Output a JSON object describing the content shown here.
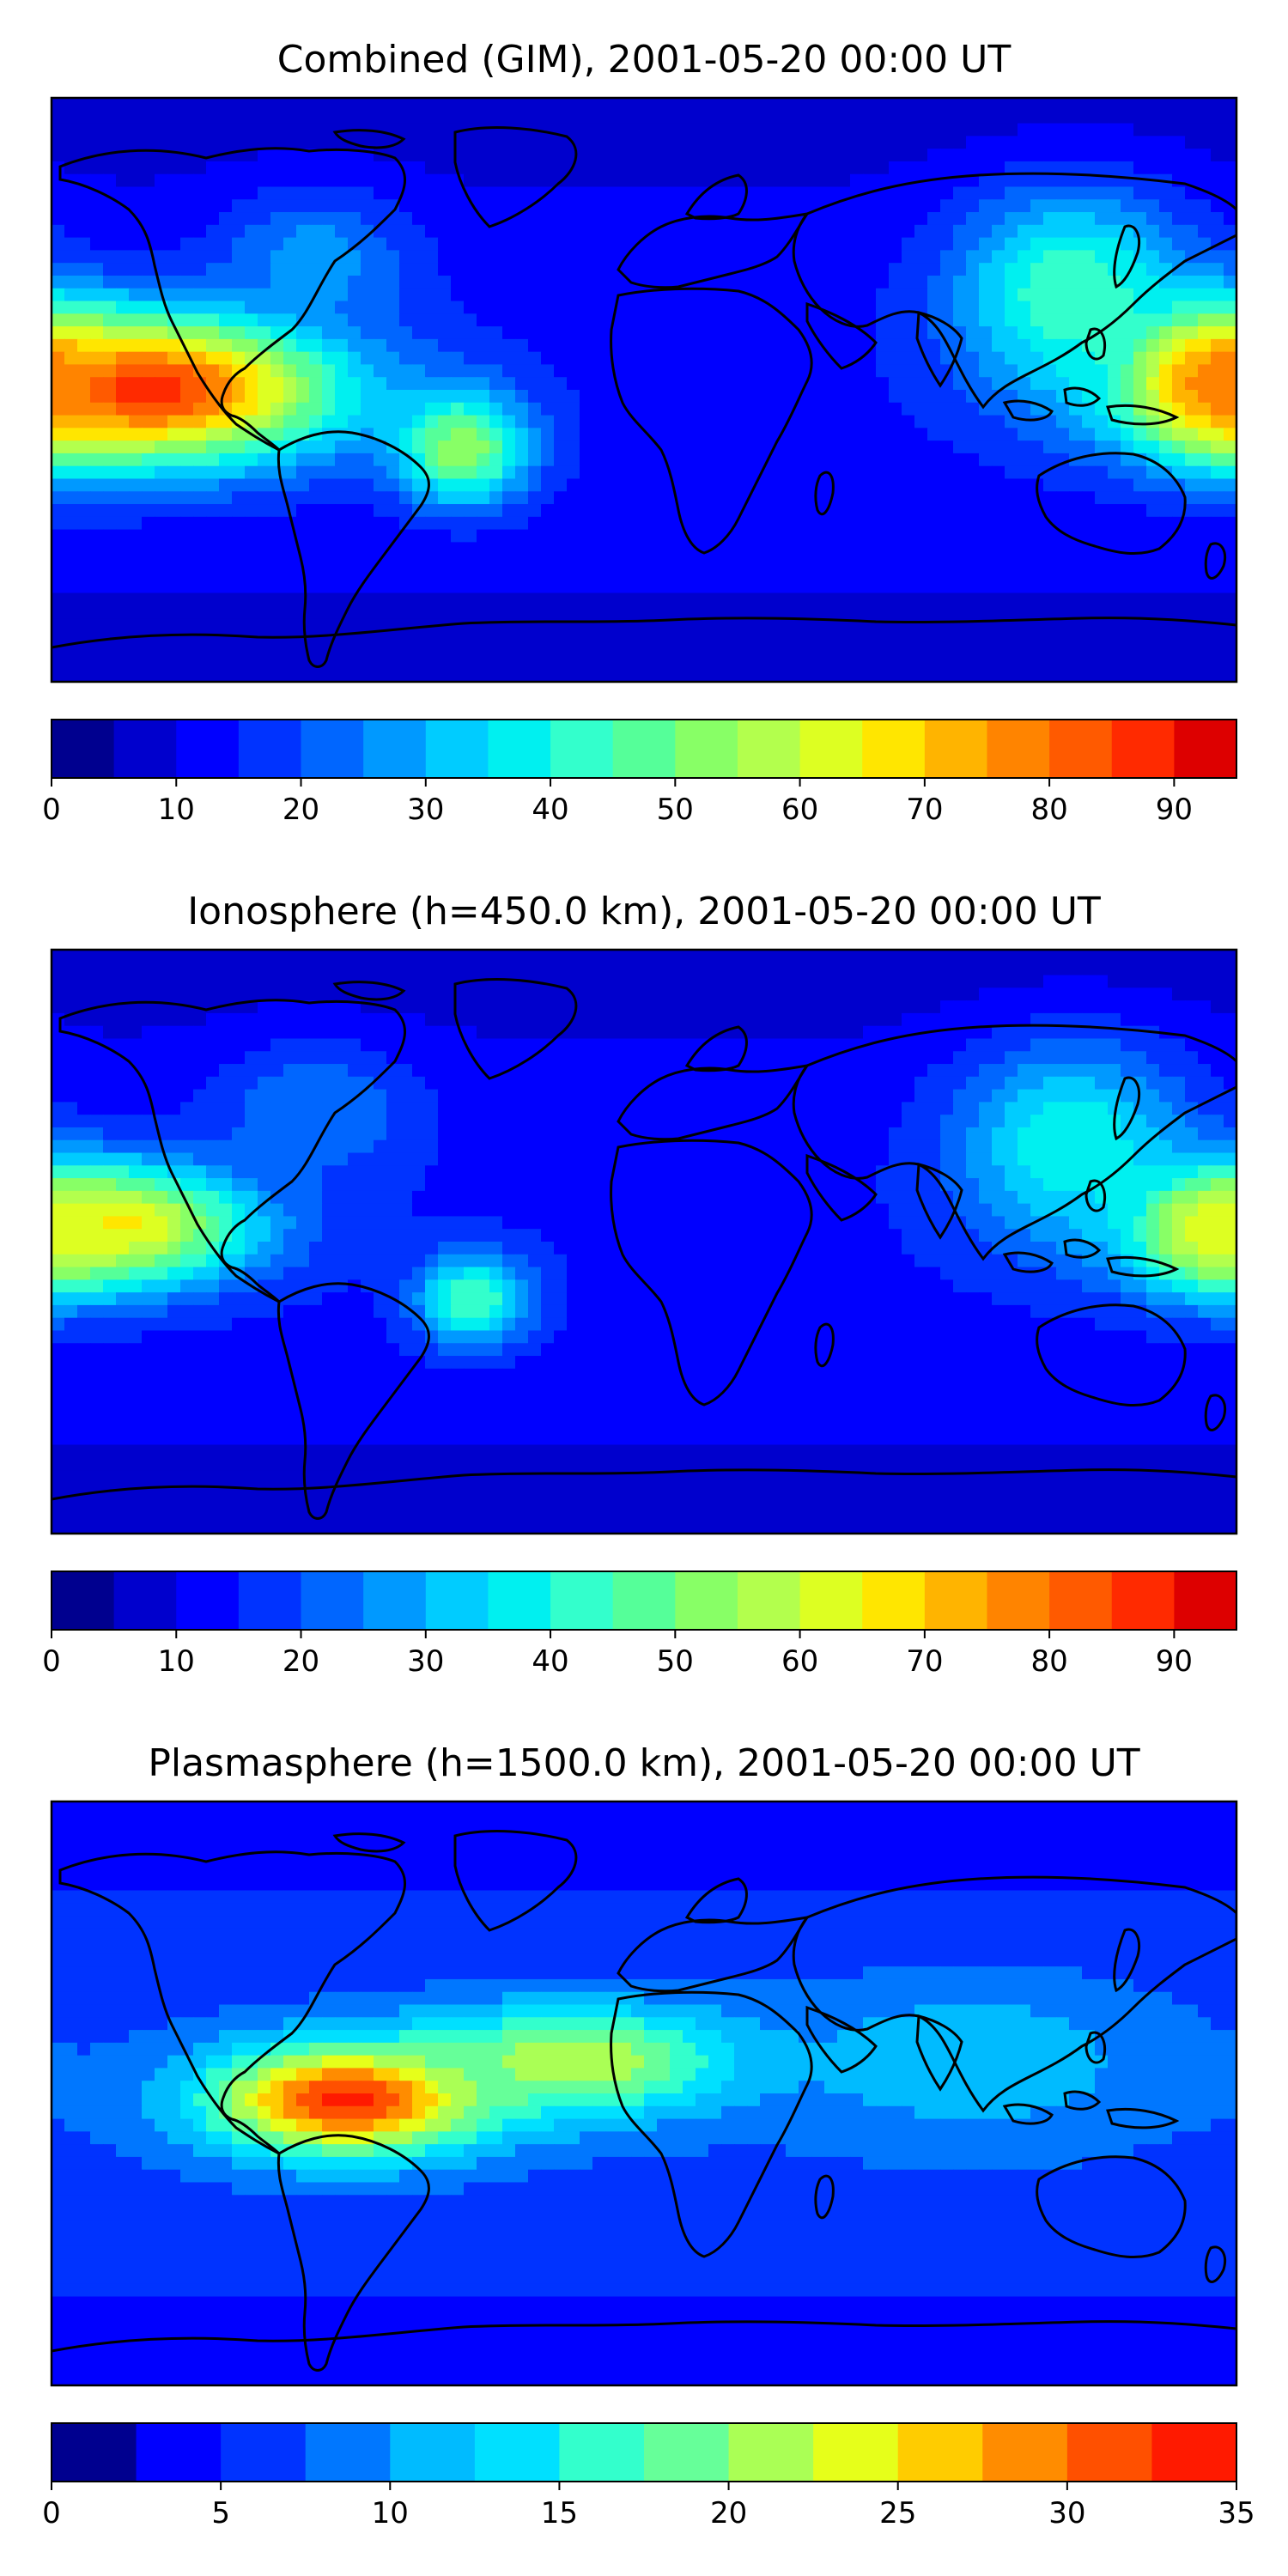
{
  "chart_data": [
    {
      "type": "heatmap",
      "title": "Combined (GIM), 2001-05-20 00:00 UT",
      "xlabel": "",
      "ylabel": "",
      "colorbar": {
        "levels": [
          0,
          5,
          10,
          15,
          20,
          25,
          30,
          35,
          40,
          45,
          50,
          55,
          60,
          65,
          70,
          75,
          80,
          85,
          90,
          95
        ],
        "ticks": [
          0,
          10,
          20,
          30,
          40,
          50,
          60,
          70,
          80,
          90
        ],
        "colors": [
          "#00008f",
          "#0000cd",
          "#0000ff",
          "#0033ff",
          "#0066ff",
          "#0099ff",
          "#00ccff",
          "#00f0f0",
          "#33ffcc",
          "#55ff99",
          "#88ff66",
          "#b3ff4d",
          "#ddff22",
          "#ffe600",
          "#ffb400",
          "#ff8400",
          "#ff5a00",
          "#ff2a00",
          "#dd0000",
          "#8f0000"
        ]
      },
      "blobs": [
        {
          "lon": -150,
          "lat": 0,
          "value": 88,
          "spread_lon": 40,
          "spread_lat": 16
        },
        {
          "lon": 175,
          "lat": 3,
          "value": 78,
          "spread_lon": 18,
          "spread_lat": 15
        },
        {
          "lon": -55,
          "lat": -18,
          "value": 55,
          "spread_lon": 14,
          "spread_lat": 12
        },
        {
          "lon": 130,
          "lat": 30,
          "value": 45,
          "spread_lon": 25,
          "spread_lat": 22
        },
        {
          "lon": -100,
          "lat": 40,
          "value": 28,
          "spread_lon": 20,
          "spread_lat": 15
        }
      ],
      "background_value": 12
    },
    {
      "type": "heatmap",
      "title": "Ionosphere  (h=450.0 km), 2001-05-20 00:00 UT",
      "xlabel": "",
      "ylabel": "",
      "colorbar": {
        "levels": [
          0,
          5,
          10,
          15,
          20,
          25,
          30,
          35,
          40,
          45,
          50,
          55,
          60,
          65,
          70,
          75,
          80,
          85,
          90,
          95
        ],
        "ticks": [
          0,
          10,
          20,
          30,
          40,
          50,
          60,
          70,
          80,
          90
        ],
        "colors": [
          "#00008f",
          "#0000cd",
          "#0000ff",
          "#0033ff",
          "#0066ff",
          "#0099ff",
          "#00ccff",
          "#00f0f0",
          "#33ffcc",
          "#55ff99",
          "#88ff66",
          "#b3ff4d",
          "#ddff22",
          "#ffe600",
          "#ffb400",
          "#ff8400",
          "#ff5a00",
          "#ff2a00",
          "#dd0000",
          "#8f0000"
        ]
      },
      "blobs": [
        {
          "lon": -160,
          "lat": 5,
          "value": 66,
          "spread_lon": 30,
          "spread_lat": 13
        },
        {
          "lon": 175,
          "lat": 3,
          "value": 64,
          "spread_lon": 18,
          "spread_lat": 13
        },
        {
          "lon": -52,
          "lat": -18,
          "value": 45,
          "spread_lon": 12,
          "spread_lat": 10
        },
        {
          "lon": 130,
          "lat": 30,
          "value": 40,
          "spread_lon": 25,
          "spread_lat": 22
        },
        {
          "lon": -100,
          "lat": 40,
          "value": 25,
          "spread_lon": 22,
          "spread_lat": 15
        }
      ],
      "background_value": 12
    },
    {
      "type": "heatmap",
      "title": "Plasmasphere (h=1500.0 km), 2001-05-20 00:00 UT",
      "xlabel": "",
      "ylabel": "",
      "colorbar": {
        "levels": [
          0,
          2.5,
          5,
          7.5,
          10,
          12.5,
          15,
          17.5,
          20,
          22.5,
          25,
          27.5,
          30,
          32.5,
          35
        ],
        "ticks": [
          0,
          5,
          10,
          15,
          20,
          25,
          30,
          35
        ],
        "colors": [
          "#00008f",
          "#0000ff",
          "#0033ff",
          "#0077ff",
          "#00bbff",
          "#00e0ff",
          "#33ffcc",
          "#66ff99",
          "#aaff55",
          "#e6ff1a",
          "#ffcc00",
          "#ff8c00",
          "#ff5000",
          "#ff1a00",
          "#b00000"
        ]
      },
      "blobs": [
        {
          "lon": -90,
          "lat": -2,
          "value": 33,
          "spread_lon": 30,
          "spread_lat": 12
        },
        {
          "lon": -20,
          "lat": 10,
          "value": 22,
          "spread_lon": 35,
          "spread_lat": 12
        },
        {
          "lon": 100,
          "lat": 10,
          "value": 12,
          "spread_lon": 40,
          "spread_lat": 18
        }
      ],
      "background_value": 6
    }
  ]
}
